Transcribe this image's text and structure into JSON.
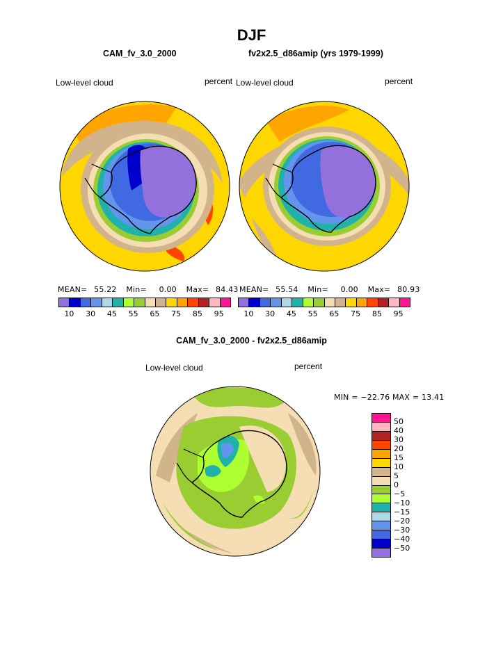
{
  "title": "DJF",
  "panels": [
    {
      "case": "CAM_fv_3.0_2000",
      "variable": "Low-level cloud",
      "units": "percent",
      "stats": {
        "mean_label": "MEAN=",
        "mean": "55.22",
        "min_label": "Min=",
        "min": "0.00",
        "max_label": "Max=",
        "max": "84.43"
      }
    },
    {
      "case": "fv2x2.5_d86amip (yrs 1979-1999)",
      "variable": "Low-level cloud",
      "units": "percent",
      "stats": {
        "mean_label": "MEAN=",
        "mean": "55.54",
        "min_label": "Min=",
        "min": "0.00",
        "max_label": "Max=",
        "max": "80.93"
      }
    }
  ],
  "diff_panel": {
    "title": "CAM_fv_3.0_2000 - fv2x2.5_d86amip",
    "variable": "Low-level cloud",
    "units": "percent",
    "minmax": "MIN = −22.76 MAX =  13.41"
  },
  "colorbar_abs": {
    "colors": [
      "#9370db",
      "#0000cd",
      "#4169e1",
      "#6495ed",
      "#add8e6",
      "#20b2aa",
      "#adff2f",
      "#9acd32",
      "#f5deb3",
      "#d2b48c",
      "#ffd700",
      "#ffa500",
      "#ff4500",
      "#b22222",
      "#ffb6c1",
      "#ff1493"
    ],
    "tick_labels": [
      "10",
      "30",
      "45",
      "55",
      "65",
      "75",
      "85",
      "95"
    ]
  },
  "colorbar_diff": {
    "colors": [
      "#ff1493",
      "#ffb6c1",
      "#b22222",
      "#ff4500",
      "#ffa500",
      "#ffd700",
      "#d2b48c",
      "#f5deb3",
      "#9acd32",
      "#adff2f",
      "#20b2aa",
      "#add8e6",
      "#6495ed",
      "#4169e1",
      "#0000cd",
      "#9370db"
    ],
    "tick_labels": [
      "50",
      "40",
      "30",
      "20",
      "15",
      "10",
      "5",
      "0",
      "−5",
      "−10",
      "−15",
      "−20",
      "−30",
      "−40",
      "−50"
    ]
  }
}
